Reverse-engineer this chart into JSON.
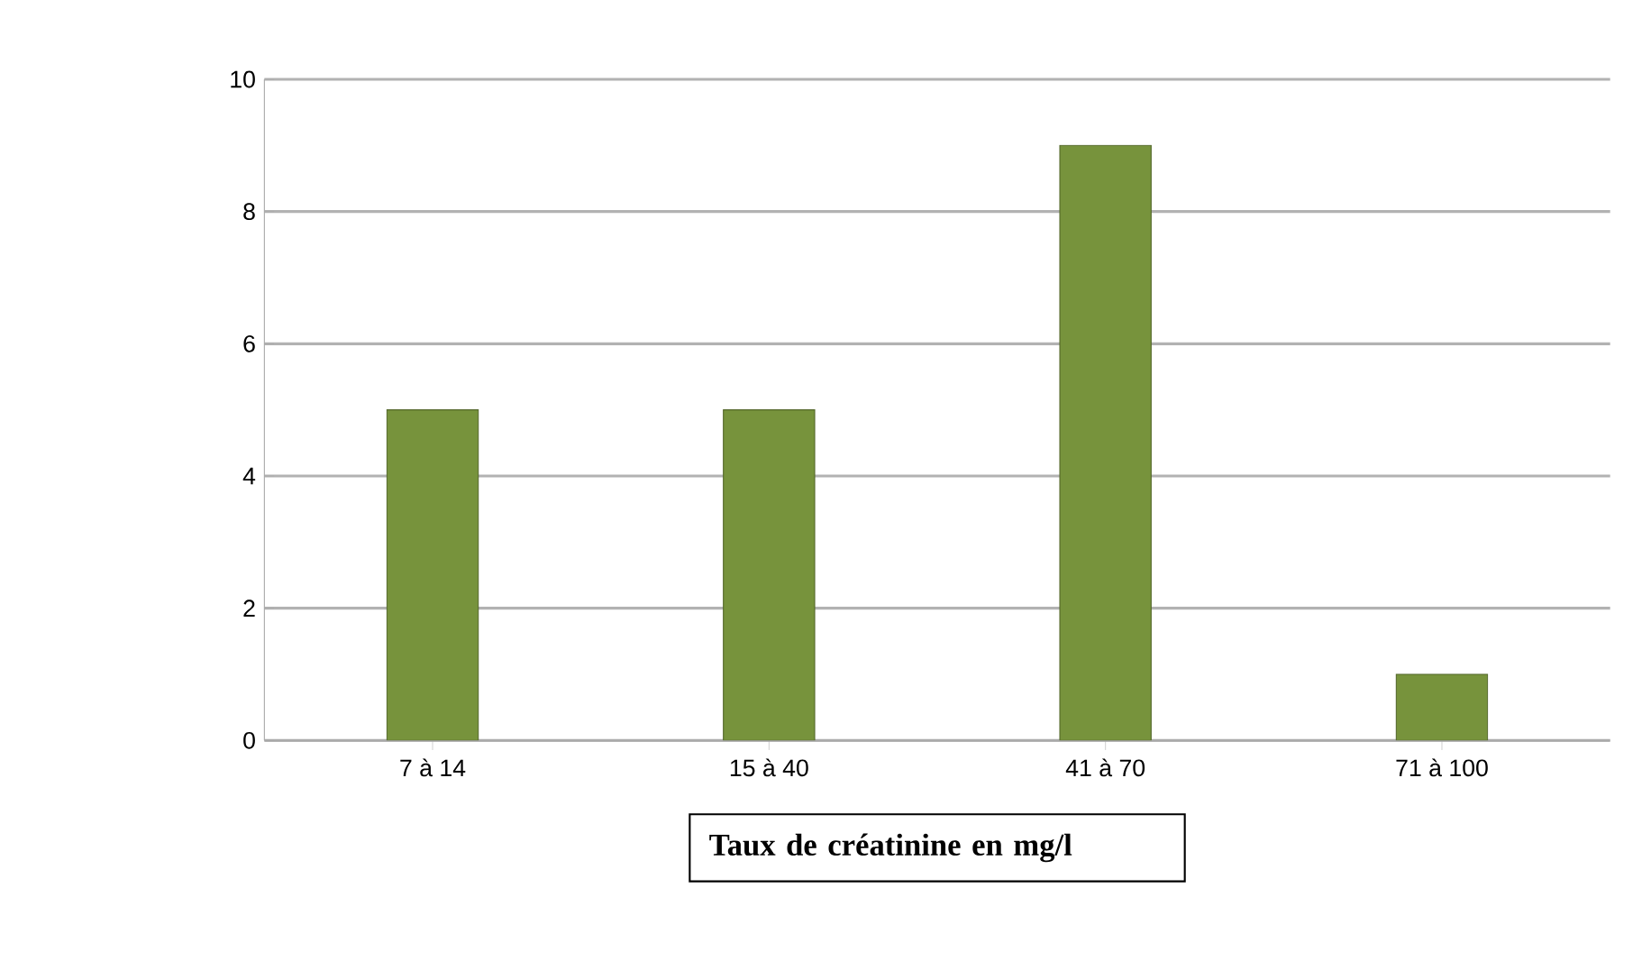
{
  "chart_data": {
    "type": "bar",
    "xlabel": "**Taux de créatinine en mg/l**",
    "categories": [
      "7 à 14",
      "15 à 40",
      "41 à 70",
      "71 à 100"
    ],
    "values": [
      5,
      5,
      9,
      1
    ],
    "color": "#77933c",
    "ylim": [
      0,
      10
    ],
    "yticks": [
      0,
      2,
      4,
      6,
      8,
      10
    ],
    "grid": "y"
  }
}
